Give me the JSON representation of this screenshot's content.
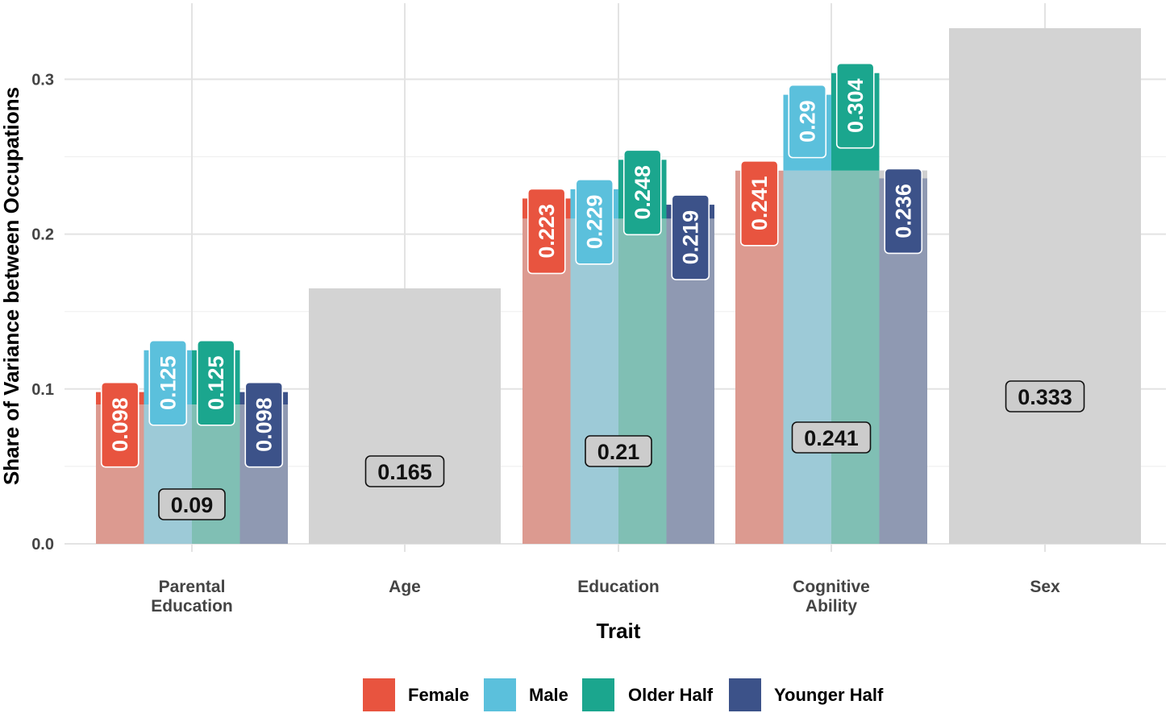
{
  "chart_data": {
    "type": "bar",
    "title": "",
    "xlabel": "Trait",
    "ylabel": "Share of Variance between Occupations",
    "ylim": [
      0,
      0.335
    ],
    "yticks": [
      0.0,
      0.1,
      0.2,
      0.3
    ],
    "ytick_labels": [
      "0.0",
      "0.1",
      "0.2",
      "0.3"
    ],
    "grid": true,
    "legend_position": "bottom",
    "categories": [
      {
        "key": "parental-education",
        "lines": [
          "Parental",
          "Education"
        ]
      },
      {
        "key": "age",
        "lines": [
          "Age"
        ]
      },
      {
        "key": "education",
        "lines": [
          "Education"
        ]
      },
      {
        "key": "cognitive-ability",
        "lines": [
          "Cognitive",
          "Ability"
        ]
      },
      {
        "key": "sex",
        "lines": [
          "Sex"
        ]
      }
    ],
    "aggregate": {
      "values": [
        0.09,
        0.165,
        0.21,
        0.241,
        0.333
      ],
      "labels": [
        "0.09",
        "0.165",
        "0.21",
        "0.241",
        "0.333"
      ],
      "color": "#d3d3d3"
    },
    "series": [
      {
        "name": "Female",
        "color": "#e8543f",
        "values": [
          0.098,
          null,
          0.223,
          0.241,
          null
        ],
        "labels": [
          "0.098",
          null,
          "0.223",
          "0.241",
          null
        ]
      },
      {
        "name": "Male",
        "color": "#5bc0dc",
        "values": [
          0.125,
          null,
          0.229,
          0.29,
          null
        ],
        "labels": [
          "0.125",
          null,
          "0.229",
          "0.29",
          null
        ]
      },
      {
        "name": "Older Half",
        "color": "#1ba68e",
        "values": [
          0.125,
          null,
          0.248,
          0.304,
          null
        ],
        "labels": [
          "0.125",
          null,
          "0.248",
          "0.304",
          null
        ]
      },
      {
        "name": "Younger Half",
        "color": "#3c5289",
        "values": [
          0.098,
          null,
          0.219,
          0.236,
          null
        ],
        "labels": [
          "0.098",
          null,
          "0.219",
          "0.236",
          null
        ]
      }
    ]
  }
}
